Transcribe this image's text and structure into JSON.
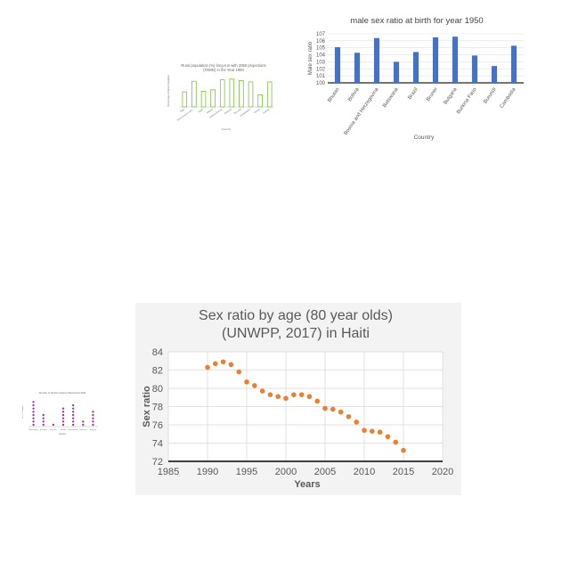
{
  "chart_data": [
    {
      "id": "rural",
      "type": "bar",
      "title": "Rural population (%) long-run with 2050 projections (OWID) in the Year 1960",
      "xlabel": "Country",
      "ylabel": "Percentage of Rural Population",
      "categories": [
        "Togo",
        "Saint Vincent and...",
        "Niger",
        "Malawi",
        "Guinea Bissau",
        "Ethiopia",
        "Burundi",
        "Bangladesh",
        "Yemen",
        "Zambia"
      ],
      "values": [
        81,
        96,
        82,
        84,
        98,
        99,
        97,
        95,
        77,
        95
      ],
      "ylim": [
        60,
        105
      ],
      "colors": {
        "outline": "#7ac143"
      }
    },
    {
      "id": "male-sex-ratio",
      "type": "bar",
      "title": "male sex ratio at birth for year 1950",
      "xlabel": "Country",
      "ylabel": "Male sex ratio",
      "categories": [
        "Bhutan",
        "Bolivia",
        "Bosnia and Herzegovina",
        "Botswana",
        "Brazil",
        "Brunei",
        "Bulgaria",
        "Burkina Faso",
        "Burundi",
        "Cambodia"
      ],
      "values": [
        105.1,
        104.3,
        106.4,
        103,
        104.4,
        106.5,
        106.6,
        103.9,
        102.4,
        105.3
      ],
      "yticks": [
        "100",
        "101",
        "102",
        "103",
        "104",
        "105",
        "106",
        "107"
      ],
      "ylim": [
        100,
        107
      ],
      "colors": {
        "bar": "#4472c4"
      }
    },
    {
      "id": "dots",
      "type": "scatter",
      "title": "Number of Tourists visited in Macedonia 2010",
      "xlabel": "Country",
      "ylabel": "No. of Tourists",
      "categories": [
        "Montenegro",
        "Slovakia",
        "Slovenia",
        "Serbia",
        "Netherlands",
        "Romania",
        "Bulgaria"
      ],
      "values": [
        8,
        4,
        1,
        6,
        7,
        2,
        5
      ],
      "ylim": [
        0,
        9
      ],
      "colors": {
        "dot": "#9b3fa0"
      }
    },
    {
      "id": "haiti",
      "type": "scatter",
      "title": "Sex ratio by age (80 year olds) (UNWPP, 2017) in Haiti",
      "title_lines": [
        "Sex ratio by age (80 year olds)",
        "(UNWPP, 2017) in Haiti"
      ],
      "xlabel": "Years",
      "ylabel": "Sex ratio",
      "x": [
        1990,
        1991,
        1992,
        1993,
        1994,
        1995,
        1996,
        1997,
        1998,
        1999,
        2000,
        2001,
        2002,
        2003,
        2004,
        2005,
        2006,
        2007,
        2008,
        2009,
        2010,
        2011,
        2012,
        2013,
        2014,
        2015
      ],
      "y": [
        82.3,
        82.7,
        82.9,
        82.6,
        81.8,
        80.7,
        80.3,
        79.7,
        79.3,
        79.1,
        78.9,
        79.3,
        79.3,
        79.1,
        78.6,
        77.8,
        77.7,
        77.4,
        76.9,
        76.3,
        75.4,
        75.3,
        75.2,
        74.7,
        74.1,
        73.2
      ],
      "xticks": [
        "1985",
        "1990",
        "1995",
        "2000",
        "2005",
        "2010",
        "2015",
        "2020"
      ],
      "yticks": [
        "72",
        "74",
        "76",
        "78",
        "80",
        "82",
        "84"
      ],
      "xlim": [
        1985,
        2020
      ],
      "ylim": [
        72,
        84
      ],
      "grid": true,
      "colors": {
        "point": "#ed7d31"
      }
    }
  ]
}
